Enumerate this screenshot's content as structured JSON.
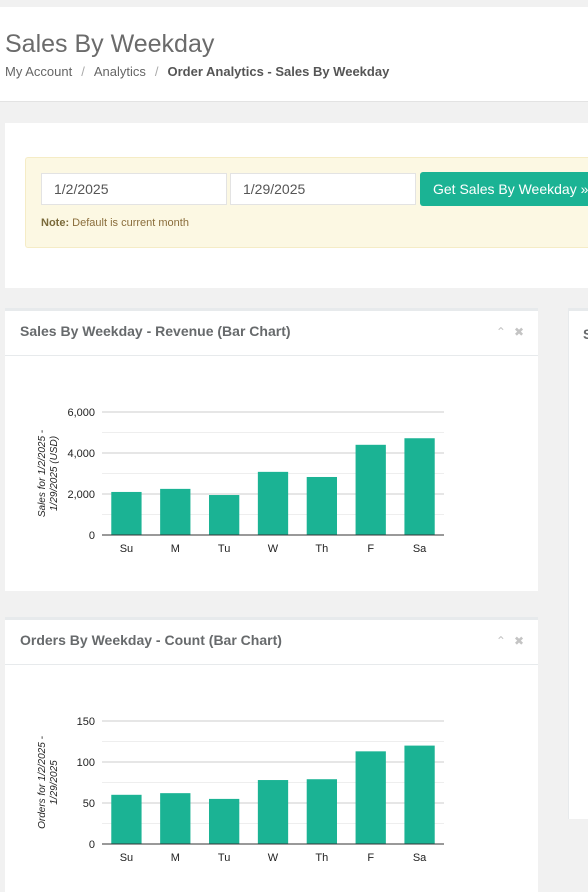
{
  "page": {
    "title": "Sales By Weekday",
    "breadcrumb": [
      "My Account",
      "Analytics",
      "Order Analytics - Sales By Weekday"
    ]
  },
  "filter": {
    "start_date": "1/2/2025",
    "end_date": "1/29/2025",
    "button_label": "Get Sales By Weekday »",
    "note_label": "Note:",
    "note_text": "Default is current month"
  },
  "panels": {
    "revenue_title": "Sales By Weekday - Revenue (Bar Chart)",
    "count_title": "Orders By Weekday - Count (Bar Chart)",
    "right_panel_title_fragment": "S"
  },
  "icons": {
    "collapse": "chevron-up-icon",
    "close": "close-icon"
  },
  "colors": {
    "bar": "#1bb394",
    "accent": "#1bb394"
  },
  "chart_data": [
    {
      "type": "bar",
      "title": "Sales By Weekday - Revenue (Bar Chart)",
      "categories": [
        "Su",
        "M",
        "Tu",
        "W",
        "Th",
        "F",
        "Sa"
      ],
      "values": [
        2100,
        2250,
        1950,
        3080,
        2830,
        4400,
        4720
      ],
      "ylabel": "Sales for 1/2/2025 - 1/29/2025 (USD)",
      "ylim": [
        0,
        6000
      ],
      "yticks": [
        0,
        2000,
        4000,
        6000
      ],
      "ytick_labels": [
        "0",
        "2,000",
        "4,000",
        "6,000"
      ],
      "grid": true,
      "legend": false
    },
    {
      "type": "bar",
      "title": "Orders By Weekday - Count (Bar Chart)",
      "categories": [
        "Su",
        "M",
        "Tu",
        "W",
        "Th",
        "F",
        "Sa"
      ],
      "values": [
        60,
        62,
        55,
        78,
        79,
        113,
        120
      ],
      "ylabel": "Orders for 1/2/2025 - 1/29/2025",
      "ylim": [
        0,
        150
      ],
      "yticks": [
        0,
        50,
        100,
        150
      ],
      "ytick_labels": [
        "0",
        "50",
        "100",
        "150"
      ],
      "grid": true,
      "legend": false
    }
  ]
}
